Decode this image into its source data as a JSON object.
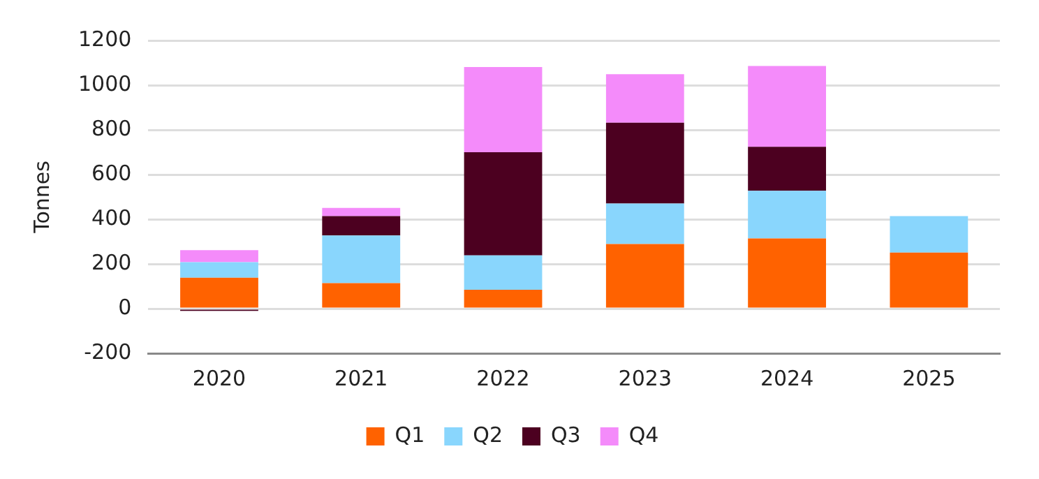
{
  "chart_data": {
    "type": "bar",
    "stacked": true,
    "ylabel": "Tonnes",
    "categories": [
      "2020",
      "2021",
      "2022",
      "2023",
      "2024",
      "2025"
    ],
    "series": [
      {
        "name": "Q1",
        "color": "#ff6200",
        "values": [
          138,
          114,
          84,
          289,
          314,
          251
        ]
      },
      {
        "name": "Q2",
        "color": "#89d6fd",
        "values": [
          70,
          213,
          154,
          181,
          213,
          163
        ]
      },
      {
        "name": "Q3",
        "color": "#4c0020",
        "values": [
          -10,
          87,
          462,
          362,
          197,
          null
        ]
      },
      {
        "name": "Q4",
        "color": "#f48bfa",
        "values": [
          54,
          37,
          381,
          217,
          362,
          null
        ]
      }
    ],
    "ylim": [
      -200,
      1200
    ],
    "yticks": [
      -200,
      0,
      200,
      400,
      600,
      800,
      1000,
      1200
    ],
    "grid": "y",
    "legend": "bottom"
  }
}
